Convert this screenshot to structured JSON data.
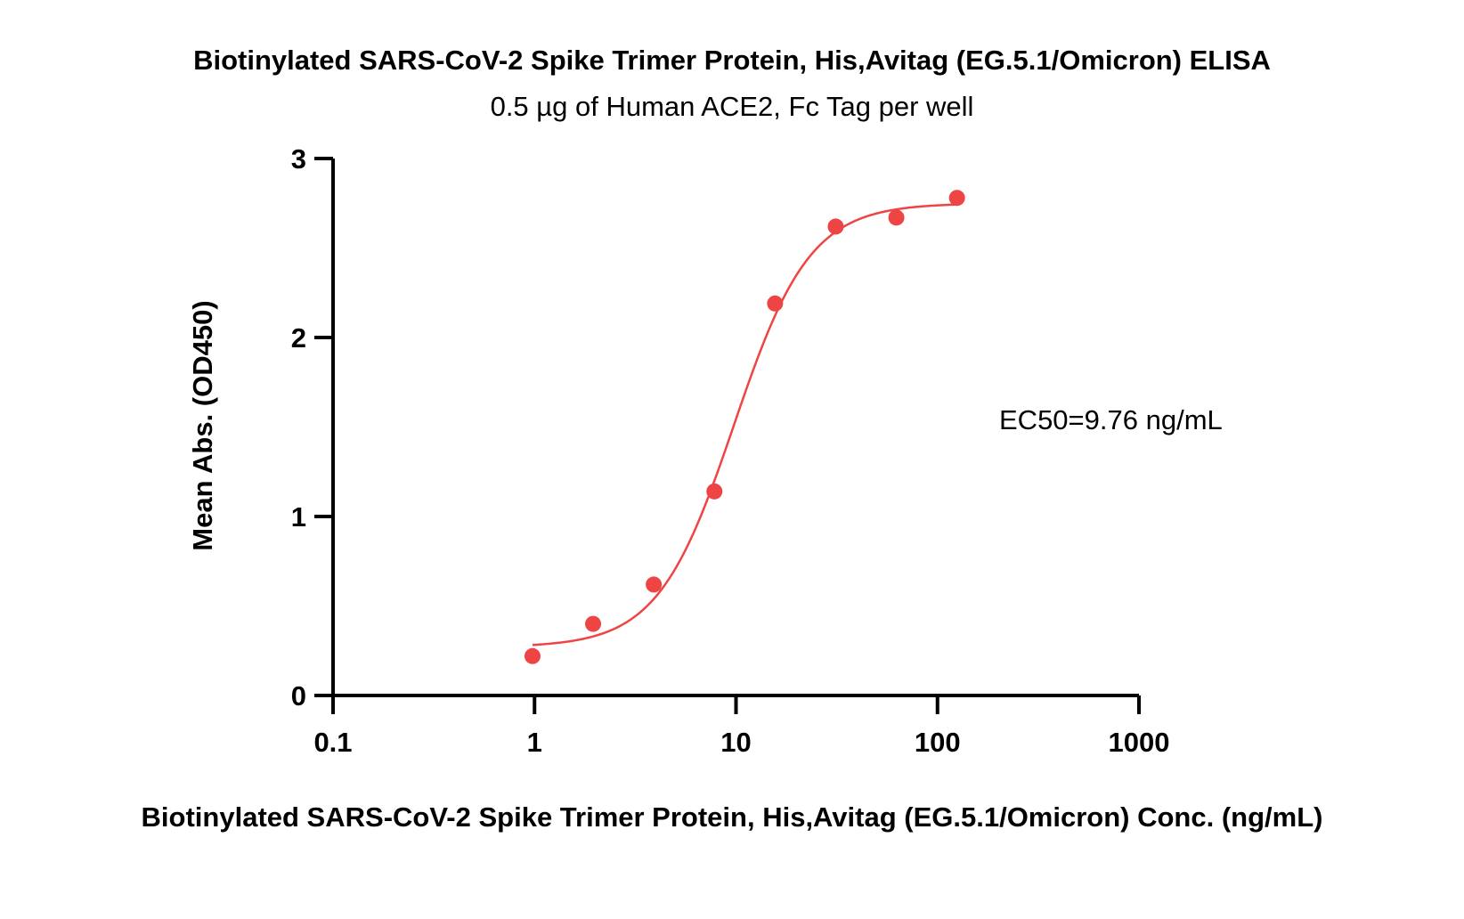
{
  "chart_data": {
    "type": "scatter",
    "title": "Biotinylated SARS-CoV-2 Spike Trimer Protein, His,Avitag (EG.5.1/Omicron) ELISA",
    "subtitle": "0.5 µg of Human ACE2, Fc Tag per well",
    "xlabel": "Biotinylated SARS-CoV-2 Spike Trimer Protein, His,Avitag (EG.5.1/Omicron) Conc. (ng/mL)",
    "ylabel": "Mean Abs. (OD450)",
    "x_scale": "log",
    "xlim": [
      0.1,
      1000
    ],
    "ylim": [
      0,
      3
    ],
    "x_ticks": [
      0.1,
      1,
      10,
      100,
      1000
    ],
    "x_tick_labels": [
      "0.1",
      "1",
      "10",
      "100",
      "1000"
    ],
    "y_ticks": [
      0,
      1,
      2,
      3
    ],
    "y_tick_labels": [
      "0",
      "1",
      "2",
      "3"
    ],
    "grid": false,
    "color": "#ef4444",
    "series": [
      {
        "x": [
          0.977,
          1.953,
          3.906,
          7.813,
          15.625,
          31.25,
          62.5,
          125
        ],
        "y": [
          0.22,
          0.4,
          0.62,
          1.14,
          2.19,
          2.62,
          2.67,
          2.78
        ]
      }
    ],
    "fit": {
      "model": "4PL",
      "bottom": 0.27,
      "top": 2.75,
      "ec50": 9.76,
      "hill": 2.3,
      "x_range": [
        0.977,
        125
      ]
    },
    "annotation": "EC50=9.76 ng/mL"
  }
}
